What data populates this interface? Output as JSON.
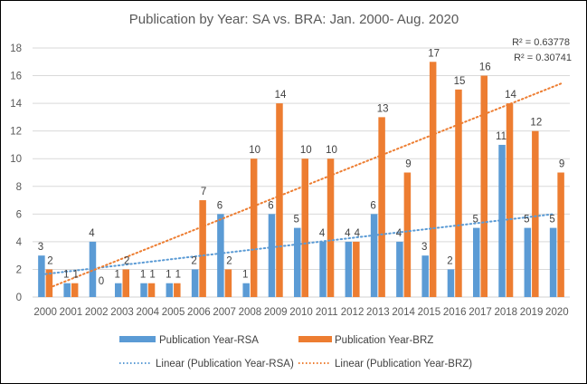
{
  "chart_data": {
    "type": "bar",
    "title": "Publication by Year: SA vs. BRA: Jan. 2000- Aug. 2020",
    "xlabel": "",
    "ylabel": "",
    "ylim": [
      0,
      18
    ],
    "yticks": [
      0,
      2,
      4,
      6,
      8,
      10,
      12,
      14,
      16,
      18
    ],
    "grid": true,
    "legend_position": "bottom",
    "categories": [
      "2000",
      "2001",
      "2002",
      "2003",
      "2004",
      "2005",
      "2006",
      "2007",
      "2008",
      "2009",
      "2010",
      "2011",
      "2012",
      "2013",
      "2014",
      "2015",
      "2016",
      "2017",
      "2018",
      "2019",
      "2020"
    ],
    "series": [
      {
        "name": "Publication Year-RSA",
        "color": "#5B9BD5",
        "values": [
          3,
          1,
          4,
          1,
          1,
          1,
          2,
          6,
          1,
          6,
          5,
          4,
          4,
          6,
          4,
          3,
          2,
          5,
          11,
          5,
          5
        ]
      },
      {
        "name": "Publication Year-BRZ",
        "color": "#ED7D31",
        "values": [
          2,
          1,
          0,
          2,
          1,
          1,
          7,
          2,
          10,
          14,
          10,
          10,
          4,
          13,
          9,
          17,
          15,
          16,
          14,
          12,
          9
        ]
      }
    ],
    "trendlines": [
      {
        "name": "Linear (Publication Year-RSA)",
        "series": "Publication Year-RSA",
        "type": "linear",
        "color": "#5B9BD5",
        "r_squared_label": "R² = 0.30741"
      },
      {
        "name": "Linear (Publication Year-BRZ)",
        "series": "Publication Year-BRZ",
        "type": "linear",
        "color": "#ED7D31",
        "r_squared_label": "R² = 0.63778"
      }
    ],
    "data_labels": true
  }
}
